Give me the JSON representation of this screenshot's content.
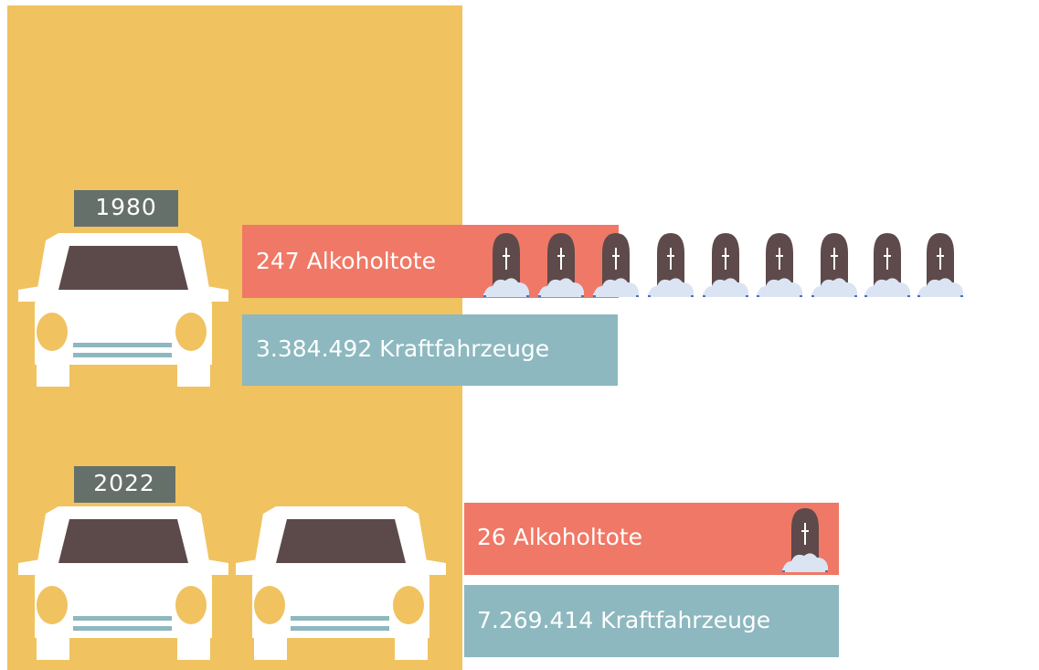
{
  "rows": [
    {
      "year": "1980",
      "deaths": "247 Alkoholtote",
      "vehicles": "3.384.492 Kraftfahrzeuge"
    },
    {
      "year": "2022",
      "deaths": "26 Alkoholtote",
      "vehicles": "7.269.414 Kraftfahrzeuge"
    }
  ]
}
